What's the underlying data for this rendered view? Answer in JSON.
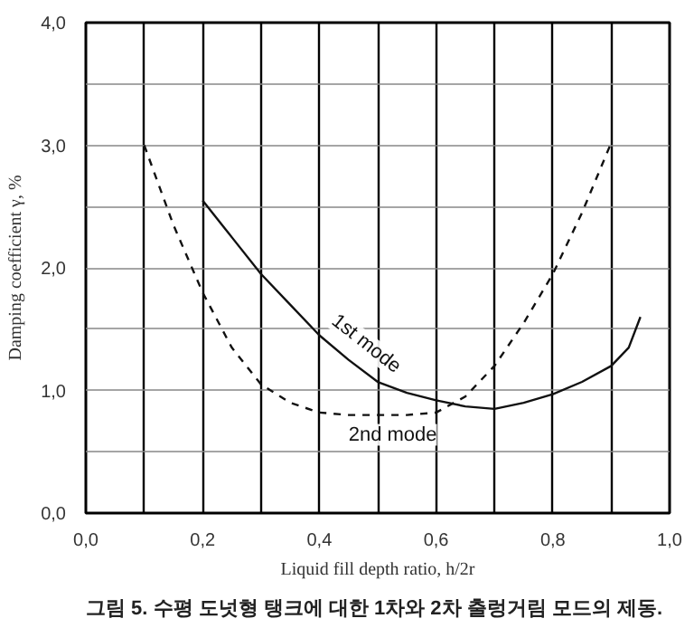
{
  "chart_data": {
    "type": "line",
    "xlabel": "Liquid fill depth ratio, h/2r",
    "ylabel": "Damping coefficient γ, %",
    "xlim": [
      0,
      1
    ],
    "ylim": [
      0,
      4
    ],
    "xticks": [
      {
        "value": 0,
        "label": "0,0"
      },
      {
        "value": 0.1,
        "label": null
      },
      {
        "value": 0.2,
        "label": "0,2"
      },
      {
        "value": 0.3,
        "label": null
      },
      {
        "value": 0.4,
        "label": "0,4"
      },
      {
        "value": 0.5,
        "label": null
      },
      {
        "value": 0.6,
        "label": "0,6"
      },
      {
        "value": 0.7,
        "label": null
      },
      {
        "value": 0.8,
        "label": "0,8"
      },
      {
        "value": 0.9,
        "label": null
      },
      {
        "value": 1,
        "label": "1,0"
      }
    ],
    "yticks": [
      {
        "value": 0,
        "label": "0,0"
      },
      {
        "value": 0.5,
        "label": null
      },
      {
        "value": 1,
        "label": "1,0"
      },
      {
        "value": 1.5,
        "label": null
      },
      {
        "value": 2,
        "label": "2,0"
      },
      {
        "value": 2.5,
        "label": null
      },
      {
        "value": 3,
        "label": "3,0"
      },
      {
        "value": 3.5,
        "label": null
      },
      {
        "value": 4,
        "label": "4,0"
      }
    ],
    "grid": true,
    "marker": "none",
    "series": [
      {
        "name": "1st mode",
        "color": "#111111",
        "line_style": "solid",
        "x": [
          0.2,
          0.25,
          0.3,
          0.35,
          0.4,
          0.45,
          0.5,
          0.55,
          0.6,
          0.65,
          0.7,
          0.75,
          0.8,
          0.85,
          0.9,
          0.93,
          0.95
        ],
        "values": [
          2.55,
          2.25,
          1.95,
          1.7,
          1.45,
          1.25,
          1.07,
          0.98,
          0.92,
          0.87,
          0.85,
          0.9,
          0.97,
          1.07,
          1.2,
          1.35,
          1.6
        ]
      },
      {
        "name": "2nd mode",
        "color": "#111111",
        "line_style": "dashed",
        "x": [
          0.1,
          0.15,
          0.2,
          0.25,
          0.3,
          0.35,
          0.4,
          0.45,
          0.5,
          0.55,
          0.6,
          0.65,
          0.7,
          0.75,
          0.8,
          0.85,
          0.9
        ],
        "values": [
          3.0,
          2.35,
          1.8,
          1.35,
          1.05,
          0.9,
          0.82,
          0.8,
          0.8,
          0.8,
          0.82,
          0.95,
          1.2,
          1.55,
          1.95,
          2.45,
          3.02
        ]
      }
    ],
    "annotations": [
      "그림 5. 수평 도넛형 탱크에 대한 1차와 2차 출렁거림 모드의 제동."
    ]
  }
}
